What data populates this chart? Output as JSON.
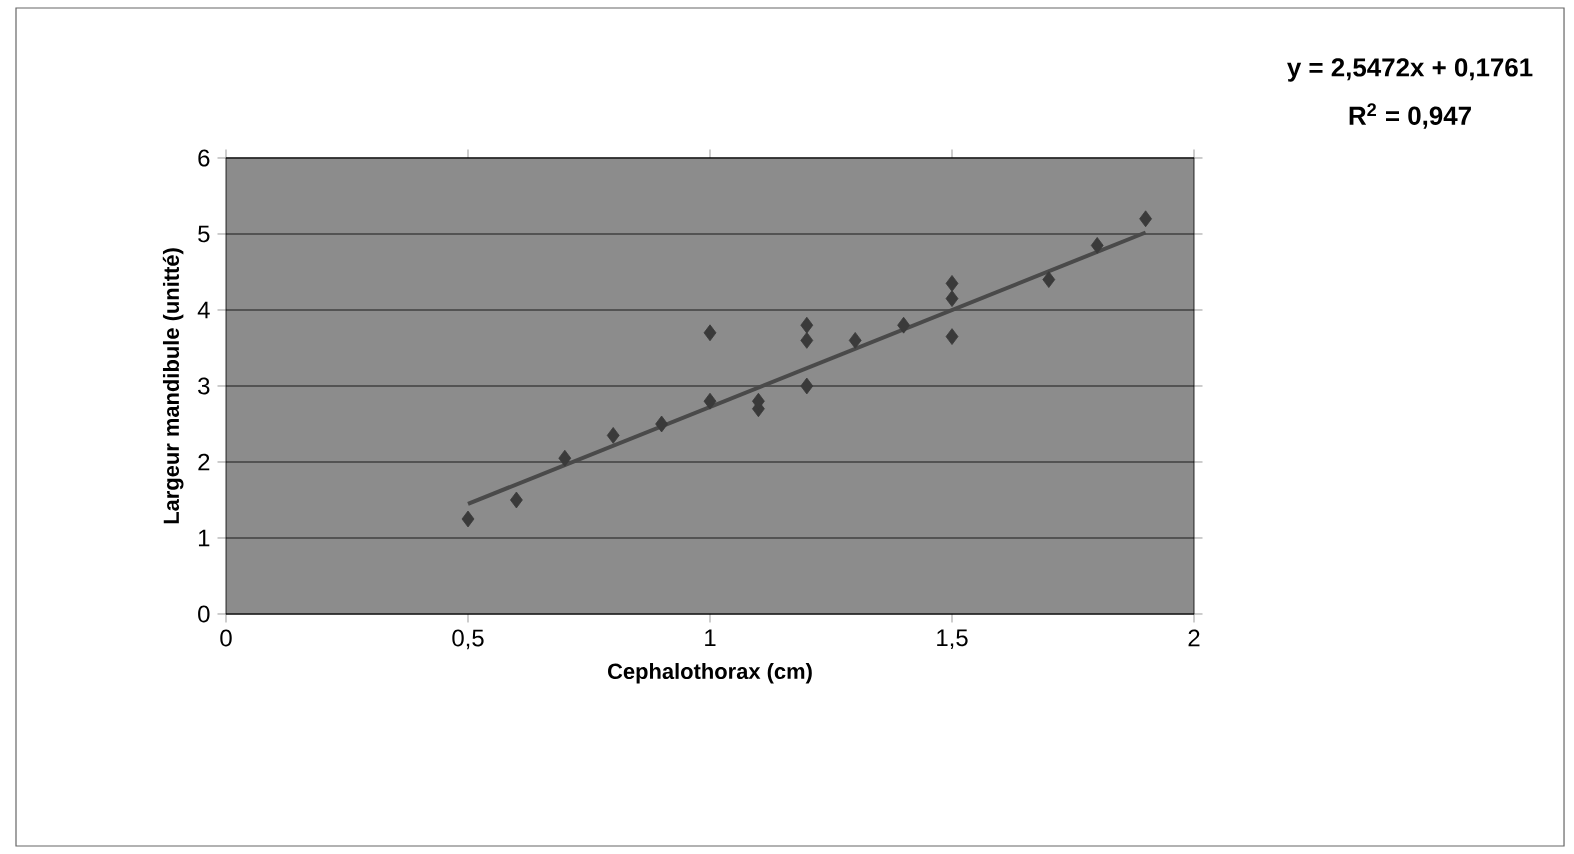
{
  "chart_data": {
    "type": "scatter",
    "xlabel": "Cephalothorax (cm)",
    "ylabel": "Largeur mandibule (unitté)",
    "xlim": [
      0,
      2
    ],
    "ylim": [
      0,
      6
    ],
    "xticks": [
      0,
      {
        "value": 0.5,
        "label": "0,5"
      },
      1,
      {
        "value": 1.5,
        "label": "1,5"
      },
      2
    ],
    "yticks": [
      0,
      1,
      2,
      3,
      4,
      5,
      6
    ],
    "grid": "y",
    "marker": "diamond",
    "series": [
      {
        "color": "#3a3a3a",
        "x": [
          0.5,
          0.6,
          0.7,
          0.8,
          0.9,
          1.0,
          1.0,
          1.1,
          1.1,
          1.2,
          1.2,
          1.2,
          1.3,
          1.4,
          1.5,
          1.5,
          1.5,
          1.7,
          1.8,
          1.9
        ],
        "values": [
          1.25,
          1.5,
          2.05,
          2.35,
          2.5,
          2.8,
          3.7,
          2.7,
          2.8,
          3.0,
          3.6,
          3.8,
          3.6,
          3.8,
          3.65,
          4.15,
          4.35,
          4.4,
          4.85,
          5.2
        ]
      },
      {
        "type": "line",
        "marker": "none",
        "color": "#4a4a4a",
        "x": [
          0.5,
          1.9
        ],
        "values": [
          1.45,
          5.02
        ]
      }
    ],
    "annotations": [
      "y = 2,5472x + 0,1761",
      "R$^{2}$ = 0,947"
    ]
  }
}
